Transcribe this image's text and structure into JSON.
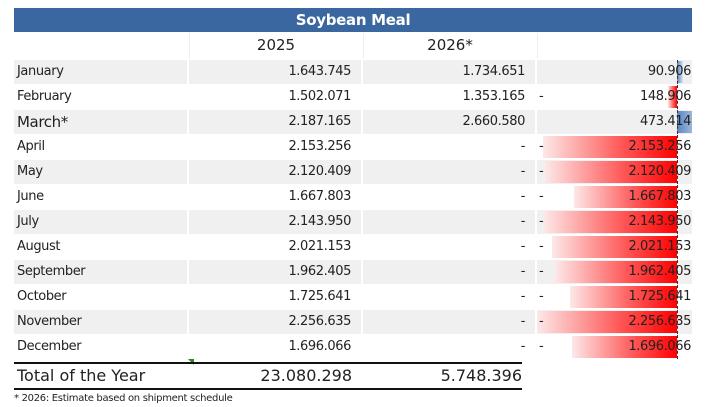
{
  "title": "Soybean Meal",
  "headers": {
    "y2025": "2025",
    "y2026": "2026*"
  },
  "colors": {
    "header_bg": "#3a67a0",
    "negative": "#ff0000",
    "positive": "#5a85c0"
  },
  "rows": [
    {
      "month": "January",
      "v2025": "1.643.745",
      "v2026": "1.734.651",
      "diff": "90.906",
      "diff_value": 90906,
      "neg": false
    },
    {
      "month": "February",
      "v2025": "1.502.071",
      "v2026": "1.353.165",
      "diff": "148.906",
      "diff_value": -148906,
      "neg": true
    },
    {
      "month": "March*",
      "v2025": "2.187.165",
      "v2026": "2.660.580",
      "diff": "473.414",
      "diff_value": 473414,
      "neg": false
    },
    {
      "month": "April",
      "v2025": "2.153.256",
      "v2026": "-",
      "diff": "2.153.256",
      "diff_value": -2153256,
      "neg": true
    },
    {
      "month": "May",
      "v2025": "2.120.409",
      "v2026": "-",
      "diff": "2.120.409",
      "diff_value": -2120409,
      "neg": true
    },
    {
      "month": "June",
      "v2025": "1.667.803",
      "v2026": "-",
      "diff": "1.667.803",
      "diff_value": -1667803,
      "neg": true
    },
    {
      "month": "July",
      "v2025": "2.143.950",
      "v2026": "-",
      "diff": "2.143.950",
      "diff_value": -2143950,
      "neg": true
    },
    {
      "month": "August",
      "v2025": "2.021.153",
      "v2026": "-",
      "diff": "2.021.153",
      "diff_value": -2021153,
      "neg": true
    },
    {
      "month": "September",
      "v2025": "1.962.405",
      "v2026": "-",
      "diff": "1.962.405",
      "diff_value": -1962405,
      "neg": true
    },
    {
      "month": "October",
      "v2025": "1.725.641",
      "v2026": "-",
      "diff": "1.725.641",
      "diff_value": -1725641,
      "neg": true
    },
    {
      "month": "November",
      "v2025": "2.256.635",
      "v2026": "-",
      "diff": "2.256.635",
      "diff_value": -2256635,
      "neg": true
    },
    {
      "month": "December",
      "v2025": "1.696.066",
      "v2026": "-",
      "diff": "1.696.066",
      "diff_value": -1696066,
      "neg": true
    }
  ],
  "total": {
    "label": "Total of the Year",
    "v2025": "23.080.298",
    "v2026": "5.748.396"
  },
  "footnote": "* 2026: Estimate based on shipment schedule",
  "minus_sign": "-"
}
